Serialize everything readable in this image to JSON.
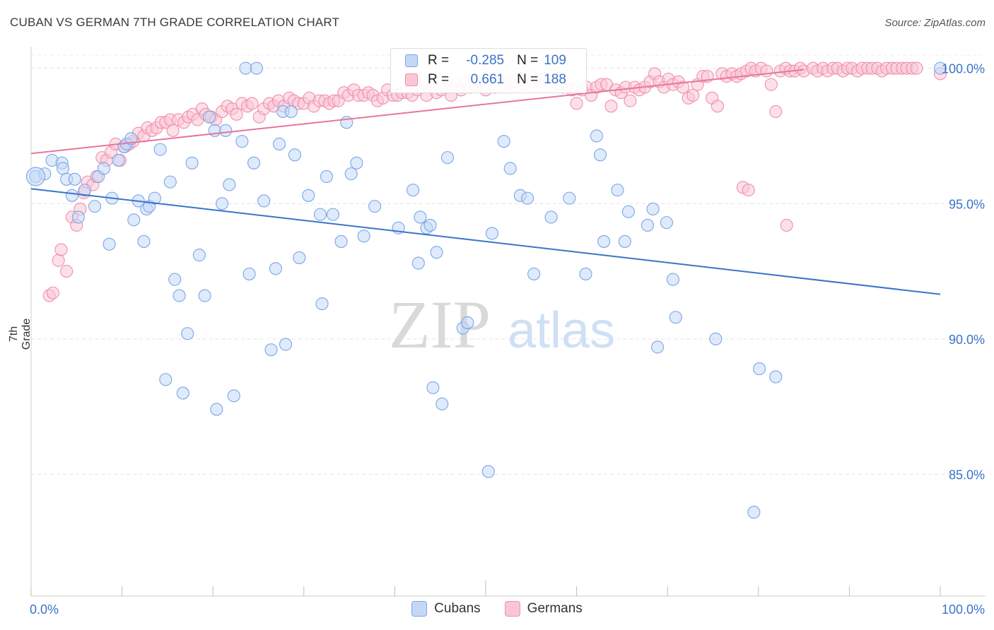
{
  "title": "CUBAN VS GERMAN 7TH GRADE CORRELATION CHART",
  "source": "Source: ZipAtlas.com",
  "watermark": {
    "zip": "ZIP",
    "atlas": "atlas"
  },
  "stats": [
    {
      "r_label": "R =",
      "r_value": "-0.285",
      "n_label": "N =",
      "n_value": "109",
      "color": "#7aa6e8",
      "fill": "#c4d8f6"
    },
    {
      "r_label": "R =",
      "r_value": "0.661",
      "n_label": "N =",
      "n_value": "188",
      "color": "#f08fab",
      "fill": "#f9c6d5"
    }
  ],
  "legend": [
    {
      "label": "Cubans",
      "color": "#7aa6e8",
      "fill": "#c4d8f6"
    },
    {
      "label": "Germans",
      "color": "#f08fab",
      "fill": "#f9c6d5"
    }
  ],
  "chart_data": {
    "type": "scatter",
    "title": "CUBAN VS GERMAN 7TH GRADE CORRELATION CHART",
    "xlabel": "",
    "ylabel": "7th Grade",
    "xlim": [
      0,
      100
    ],
    "ylim": [
      80.5,
      100.8
    ],
    "x_tick_labels": [
      "0.0%",
      "100.0%"
    ],
    "y_ticks": [
      85,
      90,
      95,
      100
    ],
    "y_tick_labels": [
      "85.0%",
      "90.0%",
      "95.0%",
      "100.0%"
    ],
    "grid": true,
    "legend_position": "bottom",
    "series": [
      {
        "name": "Cubans",
        "color": "#3a74c9",
        "point_fill": "#c4d8f6",
        "point_stroke": "#7aa6e8",
        "trend": {
          "x": [
            0,
            100
          ],
          "y": [
            95.55,
            91.65
          ]
        },
        "points": [
          [
            0.5,
            96.0
          ],
          [
            1.5,
            96.1
          ],
          [
            2.3,
            96.6
          ],
          [
            3.4,
            96.5
          ],
          [
            3.5,
            96.3
          ],
          [
            3.9,
            95.9
          ],
          [
            4.5,
            95.3
          ],
          [
            4.8,
            95.9
          ],
          [
            5.2,
            94.5
          ],
          [
            5.9,
            95.5
          ],
          [
            7.0,
            94.9
          ],
          [
            7.4,
            96.0
          ],
          [
            8.0,
            96.3
          ],
          [
            8.6,
            93.5
          ],
          [
            8.9,
            95.2
          ],
          [
            9.6,
            96.6
          ],
          [
            10.2,
            97.1
          ],
          [
            10.5,
            97.2
          ],
          [
            11.0,
            97.4
          ],
          [
            11.3,
            94.4
          ],
          [
            11.8,
            95.1
          ],
          [
            12.4,
            93.6
          ],
          [
            12.7,
            94.8
          ],
          [
            13.0,
            94.9
          ],
          [
            13.6,
            95.2
          ],
          [
            14.2,
            97.0
          ],
          [
            14.8,
            88.5
          ],
          [
            15.3,
            95.8
          ],
          [
            15.8,
            92.2
          ],
          [
            16.3,
            91.6
          ],
          [
            16.7,
            88.0
          ],
          [
            17.2,
            90.2
          ],
          [
            17.7,
            96.5
          ],
          [
            18.5,
            93.1
          ],
          [
            19.1,
            91.6
          ],
          [
            19.6,
            98.2
          ],
          [
            20.2,
            97.7
          ],
          [
            20.4,
            87.4
          ],
          [
            21.0,
            95.0
          ],
          [
            21.4,
            97.7
          ],
          [
            21.8,
            95.7
          ],
          [
            22.3,
            87.9
          ],
          [
            23.2,
            97.3
          ],
          [
            23.6,
            100.0
          ],
          [
            24.0,
            92.4
          ],
          [
            24.5,
            96.5
          ],
          [
            24.8,
            100.0
          ],
          [
            25.6,
            95.1
          ],
          [
            26.4,
            89.6
          ],
          [
            26.9,
            92.6
          ],
          [
            27.3,
            97.2
          ],
          [
            27.7,
            98.4
          ],
          [
            28.0,
            89.8
          ],
          [
            28.6,
            98.4
          ],
          [
            29.0,
            96.8
          ],
          [
            29.5,
            93.0
          ],
          [
            30.5,
            95.3
          ],
          [
            31.8,
            94.6
          ],
          [
            32.0,
            91.3
          ],
          [
            32.5,
            96.0
          ],
          [
            33.2,
            94.6
          ],
          [
            34.1,
            93.6
          ],
          [
            34.7,
            98.0
          ],
          [
            35.2,
            96.1
          ],
          [
            35.8,
            96.5
          ],
          [
            36.6,
            93.8
          ],
          [
            37.8,
            94.9
          ],
          [
            40.4,
            94.1
          ],
          [
            42.0,
            95.5
          ],
          [
            42.6,
            92.8
          ],
          [
            42.8,
            94.5
          ],
          [
            43.5,
            94.1
          ],
          [
            43.9,
            94.2
          ],
          [
            44.2,
            88.2
          ],
          [
            44.6,
            93.2
          ],
          [
            45.2,
            87.6
          ],
          [
            45.8,
            96.7
          ],
          [
            47.5,
            90.4
          ],
          [
            48.0,
            90.6
          ],
          [
            50.3,
            85.1
          ],
          [
            50.7,
            93.9
          ],
          [
            52.0,
            97.3
          ],
          [
            52.7,
            96.3
          ],
          [
            53.8,
            95.3
          ],
          [
            54.6,
            95.2
          ],
          [
            55.3,
            92.4
          ],
          [
            57.2,
            94.5
          ],
          [
            59.2,
            95.2
          ],
          [
            61.0,
            92.4
          ],
          [
            62.2,
            97.5
          ],
          [
            62.6,
            96.8
          ],
          [
            63.0,
            93.6
          ],
          [
            64.5,
            95.5
          ],
          [
            65.3,
            93.6
          ],
          [
            65.7,
            94.7
          ],
          [
            67.8,
            94.2
          ],
          [
            68.4,
            94.8
          ],
          [
            68.9,
            89.7
          ],
          [
            69.9,
            94.3
          ],
          [
            70.6,
            92.2
          ],
          [
            70.9,
            90.8
          ],
          [
            75.3,
            90.0
          ],
          [
            79.5,
            83.6
          ],
          [
            80.1,
            88.9
          ],
          [
            81.9,
            88.6
          ],
          [
            100.0,
            100.0
          ]
        ]
      },
      {
        "name": "Germans",
        "color": "#e8769c",
        "point_fill": "#f9c6d5",
        "point_stroke": "#f08fab",
        "trend": {
          "x": [
            0,
            85
          ],
          "y": [
            96.85,
            99.95
          ]
        },
        "points": [
          [
            2.0,
            91.6
          ],
          [
            2.4,
            91.7
          ],
          [
            3.0,
            92.9
          ],
          [
            3.3,
            93.3
          ],
          [
            3.9,
            92.5
          ],
          [
            4.5,
            94.5
          ],
          [
            5.0,
            94.2
          ],
          [
            5.4,
            94.8
          ],
          [
            5.8,
            95.4
          ],
          [
            6.2,
            95.8
          ],
          [
            6.8,
            95.7
          ],
          [
            7.2,
            96.0
          ],
          [
            7.8,
            96.7
          ],
          [
            8.3,
            96.6
          ],
          [
            8.8,
            96.9
          ],
          [
            9.3,
            97.2
          ],
          [
            9.8,
            96.6
          ],
          [
            10.3,
            97.1
          ],
          [
            10.8,
            97.2
          ],
          [
            11.2,
            97.3
          ],
          [
            11.8,
            97.6
          ],
          [
            12.4,
            97.5
          ],
          [
            12.8,
            97.8
          ],
          [
            13.3,
            97.7
          ],
          [
            13.8,
            97.8
          ],
          [
            14.3,
            98.0
          ],
          [
            14.8,
            98.0
          ],
          [
            15.3,
            98.1
          ],
          [
            15.6,
            97.7
          ],
          [
            16.2,
            98.1
          ],
          [
            16.8,
            98.0
          ],
          [
            17.3,
            98.2
          ],
          [
            17.8,
            98.3
          ],
          [
            18.3,
            98.1
          ],
          [
            18.8,
            98.5
          ],
          [
            19.2,
            98.3
          ],
          [
            19.8,
            98.2
          ],
          [
            20.3,
            98.1
          ],
          [
            21.0,
            98.4
          ],
          [
            21.6,
            98.6
          ],
          [
            22.1,
            98.5
          ],
          [
            22.6,
            98.3
          ],
          [
            23.2,
            98.7
          ],
          [
            23.8,
            98.6
          ],
          [
            24.3,
            98.7
          ],
          [
            25.1,
            98.2
          ],
          [
            25.6,
            98.5
          ],
          [
            26.2,
            98.7
          ],
          [
            26.7,
            98.6
          ],
          [
            27.2,
            98.8
          ],
          [
            27.8,
            98.6
          ],
          [
            28.4,
            98.9
          ],
          [
            28.9,
            98.8
          ],
          [
            29.4,
            98.7
          ],
          [
            30.0,
            98.7
          ],
          [
            30.6,
            98.9
          ],
          [
            31.1,
            98.6
          ],
          [
            31.7,
            98.8
          ],
          [
            32.3,
            98.8
          ],
          [
            32.8,
            98.7
          ],
          [
            33.3,
            98.8
          ],
          [
            33.8,
            98.8
          ],
          [
            34.4,
            99.1
          ],
          [
            34.9,
            99.0
          ],
          [
            35.5,
            99.2
          ],
          [
            36.0,
            99.0
          ],
          [
            36.6,
            99.0
          ],
          [
            37.1,
            99.1
          ],
          [
            37.6,
            99.0
          ],
          [
            38.1,
            98.8
          ],
          [
            38.7,
            98.9
          ],
          [
            39.2,
            99.2
          ],
          [
            39.8,
            99.0
          ],
          [
            40.3,
            99.0
          ],
          [
            40.8,
            99.1
          ],
          [
            41.4,
            99.1
          ],
          [
            41.9,
            99.0
          ],
          [
            42.5,
            99.2
          ],
          [
            43.0,
            99.3
          ],
          [
            43.5,
            99.0
          ],
          [
            44.1,
            99.3
          ],
          [
            44.6,
            99.1
          ],
          [
            45.1,
            99.2
          ],
          [
            45.7,
            99.3
          ],
          [
            46.2,
            99.0
          ],
          [
            46.8,
            99.4
          ],
          [
            47.3,
            99.2
          ],
          [
            47.8,
            99.5
          ],
          [
            48.3,
            99.3
          ],
          [
            48.9,
            99.4
          ],
          [
            49.4,
            99.5
          ],
          [
            50.0,
            99.2
          ],
          [
            50.5,
            99.6
          ],
          [
            51.0,
            99.3
          ],
          [
            51.6,
            99.6
          ],
          [
            52.1,
            99.4
          ],
          [
            52.6,
            99.5
          ],
          [
            53.2,
            99.5
          ],
          [
            53.7,
            99.6
          ],
          [
            54.3,
            99.4
          ],
          [
            54.8,
            99.7
          ],
          [
            55.3,
            99.5
          ],
          [
            55.8,
            99.6
          ],
          [
            56.4,
            99.6
          ],
          [
            57.0,
            99.5
          ],
          [
            57.4,
            99.7
          ],
          [
            58.0,
            99.4
          ],
          [
            58.5,
            99.3
          ],
          [
            59.0,
            99.4
          ],
          [
            59.5,
            99.2
          ],
          [
            60.0,
            98.7
          ],
          [
            60.6,
            99.2
          ],
          [
            61.1,
            99.3
          ],
          [
            61.6,
            99.0
          ],
          [
            62.2,
            99.3
          ],
          [
            62.7,
            99.4
          ],
          [
            63.3,
            99.4
          ],
          [
            63.8,
            98.6
          ],
          [
            64.3,
            99.2
          ],
          [
            64.9,
            99.1
          ],
          [
            65.4,
            99.3
          ],
          [
            65.9,
            98.8
          ],
          [
            66.4,
            99.3
          ],
          [
            66.9,
            99.2
          ],
          [
            67.5,
            99.3
          ],
          [
            68.1,
            99.5
          ],
          [
            68.6,
            99.8
          ],
          [
            69.1,
            99.5
          ],
          [
            69.6,
            99.3
          ],
          [
            70.1,
            99.6
          ],
          [
            70.6,
            99.4
          ],
          [
            71.2,
            99.5
          ],
          [
            71.7,
            99.3
          ],
          [
            72.3,
            98.9
          ],
          [
            72.8,
            99.0
          ],
          [
            73.3,
            99.4
          ],
          [
            73.9,
            99.7
          ],
          [
            74.4,
            99.7
          ],
          [
            74.9,
            98.9
          ],
          [
            75.5,
            98.6
          ],
          [
            76.0,
            99.8
          ],
          [
            76.5,
            99.7
          ],
          [
            77.1,
            99.8
          ],
          [
            77.6,
            99.7
          ],
          [
            78.1,
            99.8
          ],
          [
            78.7,
            99.9
          ],
          [
            79.2,
            100.0
          ],
          [
            79.7,
            99.9
          ],
          [
            80.3,
            100.0
          ],
          [
            80.9,
            99.9
          ],
          [
            81.4,
            99.4
          ],
          [
            81.9,
            98.4
          ],
          [
            82.4,
            99.9
          ],
          [
            83.0,
            100.0
          ],
          [
            83.5,
            99.9
          ],
          [
            84.0,
            99.9
          ],
          [
            84.6,
            100.0
          ],
          [
            85.0,
            99.9
          ],
          [
            86.0,
            100.0
          ],
          [
            86.5,
            99.9
          ],
          [
            87.1,
            100.0
          ],
          [
            87.6,
            99.9
          ],
          [
            88.2,
            100.0
          ],
          [
            88.7,
            100.0
          ],
          [
            89.3,
            99.9
          ],
          [
            89.8,
            100.0
          ],
          [
            90.3,
            100.0
          ],
          [
            90.9,
            99.9
          ],
          [
            91.4,
            100.0
          ],
          [
            92.0,
            100.0
          ],
          [
            92.5,
            100.0
          ],
          [
            93.1,
            100.0
          ],
          [
            93.6,
            99.9
          ],
          [
            94.1,
            100.0
          ],
          [
            94.7,
            100.0
          ],
          [
            95.2,
            100.0
          ],
          [
            95.8,
            100.0
          ],
          [
            96.3,
            100.0
          ],
          [
            96.9,
            100.0
          ],
          [
            97.4,
            100.0
          ],
          [
            100.0,
            99.8
          ],
          [
            78.3,
            95.6
          ],
          [
            78.9,
            95.5
          ],
          [
            83.1,
            94.2
          ]
        ]
      }
    ]
  }
}
